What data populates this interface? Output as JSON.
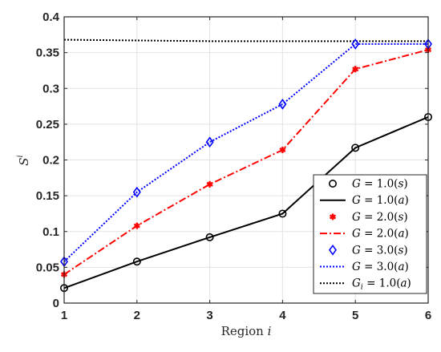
{
  "chart_data": {
    "type": "line",
    "x": [
      1,
      2,
      3,
      4,
      5,
      6
    ],
    "xlim": [
      1,
      6
    ],
    "ylim": [
      0,
      0.4
    ],
    "xticks": [
      "1",
      "2",
      "3",
      "4",
      "5",
      "6"
    ],
    "yticks": [
      "0",
      "0.05",
      "0.1",
      "0.15",
      "0.2",
      "0.25",
      "0.3",
      "0.35",
      "0.4"
    ],
    "xlabel_main": "Region ",
    "xlabel_var": "i",
    "ylabel_main": "S",
    "ylabel_sup": "i",
    "grid": true,
    "legend_position": "bottom-right",
    "series": [
      {
        "name_lhs": "G",
        "name_rhs": " = 1.0(",
        "name_arg": "s",
        "name_end": ")",
        "kind": "markers",
        "marker": "circle",
        "color": "#000000",
        "values": [
          0.021,
          0.058,
          0.092,
          0.125,
          0.217,
          0.26
        ]
      },
      {
        "name_lhs": "G",
        "name_rhs": " = 1.0(",
        "name_arg": "a",
        "name_end": ")",
        "kind": "line",
        "dash": "solid",
        "color": "#000000",
        "values": [
          0.021,
          0.058,
          0.092,
          0.125,
          0.217,
          0.26
        ]
      },
      {
        "name_lhs": "G",
        "name_rhs": " = 2.0(",
        "name_arg": "s",
        "name_end": ")",
        "kind": "markers",
        "marker": "asterisk",
        "color": "#ff0000",
        "values": [
          0.04,
          0.108,
          0.166,
          0.214,
          0.327,
          0.354
        ]
      },
      {
        "name_lhs": "G",
        "name_rhs": " = 2.0(",
        "name_arg": "a",
        "name_end": ")",
        "kind": "line",
        "dash": "dashdot",
        "color": "#ff0000",
        "values": [
          0.04,
          0.108,
          0.166,
          0.214,
          0.327,
          0.354
        ]
      },
      {
        "name_lhs": "G",
        "name_rhs": " = 3.0(",
        "name_arg": "s",
        "name_end": ")",
        "kind": "markers",
        "marker": "diamond",
        "color": "#0000ff",
        "values": [
          0.058,
          0.155,
          0.225,
          0.278,
          0.362,
          0.362
        ]
      },
      {
        "name_lhs": "G",
        "name_rhs": " = 3.0(",
        "name_arg": "a",
        "name_end": ")",
        "kind": "line",
        "dash": "dotted",
        "color": "#0000ff",
        "values": [
          0.058,
          0.155,
          0.225,
          0.278,
          0.362,
          0.362
        ]
      },
      {
        "name_lhs": "G",
        "name_sub": "i",
        "name_rhs": " = 1.0(",
        "name_arg": "a",
        "name_end": ")",
        "kind": "line",
        "dash": "dotted",
        "color": "#000000",
        "values": [
          0.368,
          0.367,
          0.366,
          0.366,
          0.366,
          0.366
        ]
      }
    ]
  }
}
